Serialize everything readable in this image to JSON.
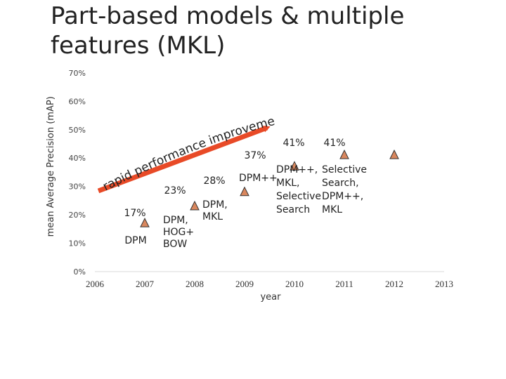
{
  "slide": {
    "title": "Part-based models & multiple features (MKL)"
  },
  "chart_data": {
    "type": "scatter",
    "title": "",
    "xlabel": "year",
    "ylabel": "mean Average Precision (mAP)",
    "xlim": [
      2006,
      2013
    ],
    "ylim": [
      0,
      70
    ],
    "x_ticks": [
      "2006",
      "2007",
      "2008",
      "2009",
      "2010",
      "2011",
      "2012",
      "2013"
    ],
    "y_ticks": [
      "0%",
      "10%",
      "20%",
      "30%",
      "40%",
      "50%",
      "60%",
      "70%"
    ],
    "grid": false,
    "marker": "triangle",
    "marker_color": "#D9875E",
    "points": [
      {
        "x": 2007,
        "y": 17
      },
      {
        "x": 2008,
        "y": 23
      },
      {
        "x": 2009,
        "y": 28
      },
      {
        "x": 2010,
        "y": 37
      },
      {
        "x": 2011,
        "y": 41
      },
      {
        "x": 2012,
        "y": 41
      }
    ],
    "annotations": {
      "v2007": "17%",
      "m2007": "DPM",
      "v2008": "23%",
      "m2008": [
        "DPM,",
        "HOG+",
        "BOW"
      ],
      "v2009": "28%",
      "m2009": [
        "DPM,",
        "MKL"
      ],
      "v2010": "37%",
      "t2010": "DPM++",
      "m2010": [
        "DPM++,",
        "MKL,",
        "Selective",
        "Search"
      ],
      "v2011": "41%",
      "v2012": "41%",
      "m2012": [
        "Selective",
        "Search,",
        "DPM++,",
        "MKL"
      ]
    },
    "trend_arrow": {
      "text": "rapid performance improvements",
      "color": "#E84A27"
    }
  }
}
